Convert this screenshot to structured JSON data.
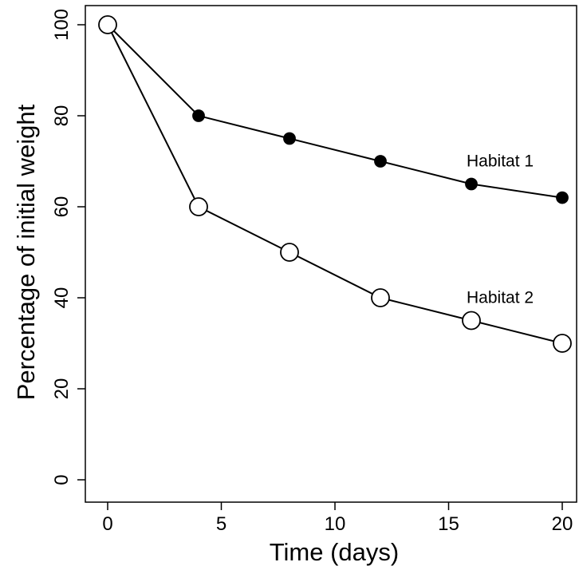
{
  "chart_data": {
    "type": "line",
    "title": "",
    "xlabel": "Time (days)",
    "ylabel": "Percentage of initial weight",
    "xlim": [
      -1,
      21
    ],
    "ylim": [
      -5,
      105
    ],
    "xticks": [
      0,
      5,
      10,
      15,
      20
    ],
    "yticks": [
      0,
      20,
      40,
      60,
      80,
      100
    ],
    "x": [
      0,
      4,
      8,
      12,
      16,
      20
    ],
    "grid": false,
    "legend": "none",
    "series": [
      {
        "name": "Habitat 1",
        "marker": "filled-circle",
        "color": "#000000",
        "values": [
          100,
          80,
          75,
          70,
          65,
          62
        ]
      },
      {
        "name": "Habitat 2",
        "marker": "open-circle",
        "color": "#000000",
        "values": [
          100,
          60,
          50,
          40,
          35,
          30
        ]
      }
    ]
  }
}
